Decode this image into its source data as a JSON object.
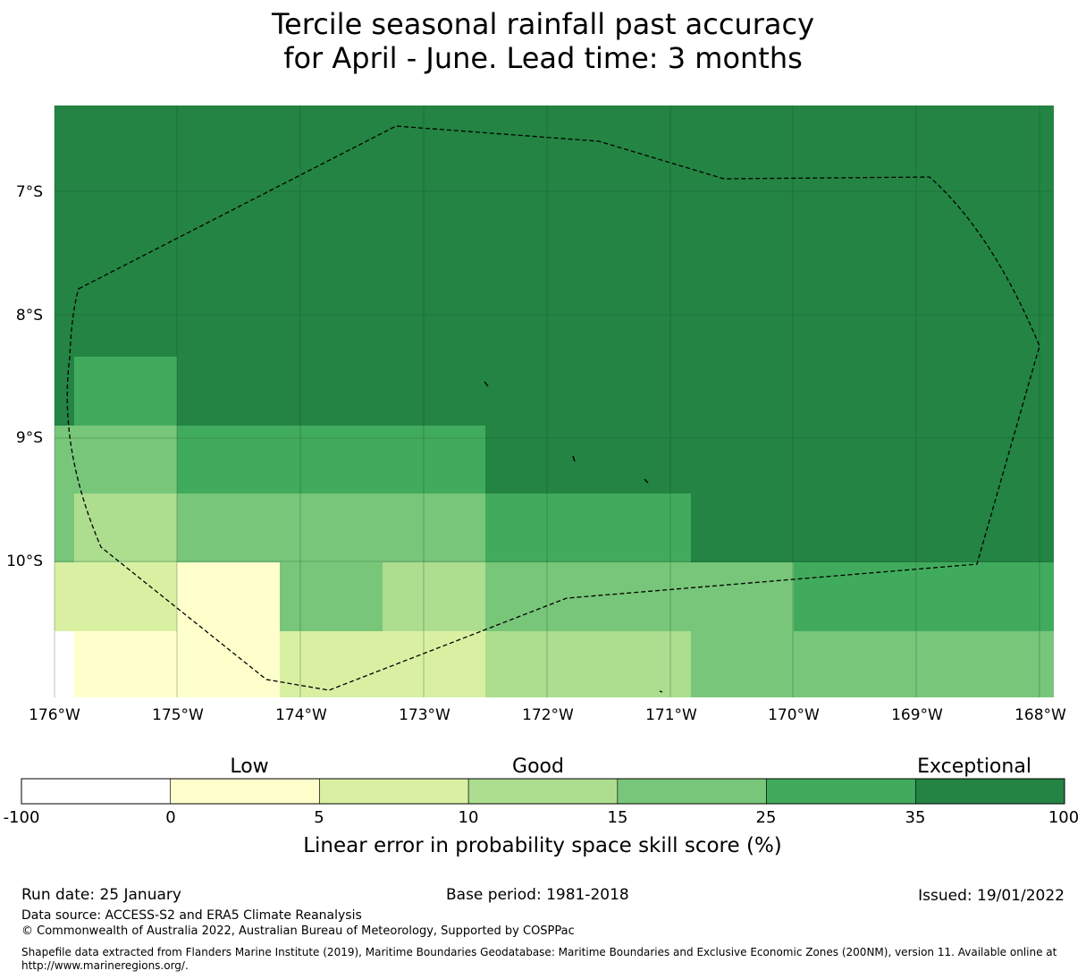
{
  "title": {
    "line1": "Tercile seasonal rainfall past accuracy",
    "line2": "for April - June. Lead time: 3 months"
  },
  "map": {
    "lon_labels": [
      "176°W",
      "175°W",
      "174°W",
      "173°W",
      "172°W",
      "171°W",
      "170°W",
      "169°W",
      "168°W"
    ],
    "lat_labels": [
      "7°S",
      "8°S",
      "9°S",
      "10°S"
    ],
    "lon_range": [
      -176.0,
      -167.9
    ],
    "lat_range": [
      -11.15,
      -6.3
    ],
    "colors": {
      "dark": "#238443",
      "mid": "#41ab5d",
      "light": "#78c679",
      "pale": "#addd8e",
      "verypale": "#d9f0a3",
      "cream": "#ffffcc"
    }
  },
  "legend": {
    "category_labels": [
      "Low",
      "Good",
      "Exceptional"
    ],
    "tick_labels": [
      "-100",
      "0",
      "5",
      "10",
      "15",
      "25",
      "35",
      "100"
    ],
    "colors": [
      "#ffffff",
      "#ffffcc",
      "#d9f0a3",
      "#addd8e",
      "#78c679",
      "#41ab5d",
      "#238443"
    ],
    "xlabel": "Linear error in probability space skill score (%)"
  },
  "footer": {
    "run_date": "Run date: 25 January",
    "base_period": "Base period: 1981-2018",
    "issued": "Issued: 19/01/2022",
    "data_source": "Data source: ACCESS-S2 and ERA5 Climate Reanalysis",
    "copyright": "© Commonwealth of Australia 2022, Australian Bureau of Meteorology, Supported by COSPPac",
    "shapefile_line1": "Shapefile data extracted from Flanders Marine Institute (2019), Maritime Boundaries Geodatabase: Maritime Boundaries and Exclusive Economic Zones (200NM), version 11. Available online at",
    "shapefile_line2": "http://www.marineregions.org/."
  }
}
